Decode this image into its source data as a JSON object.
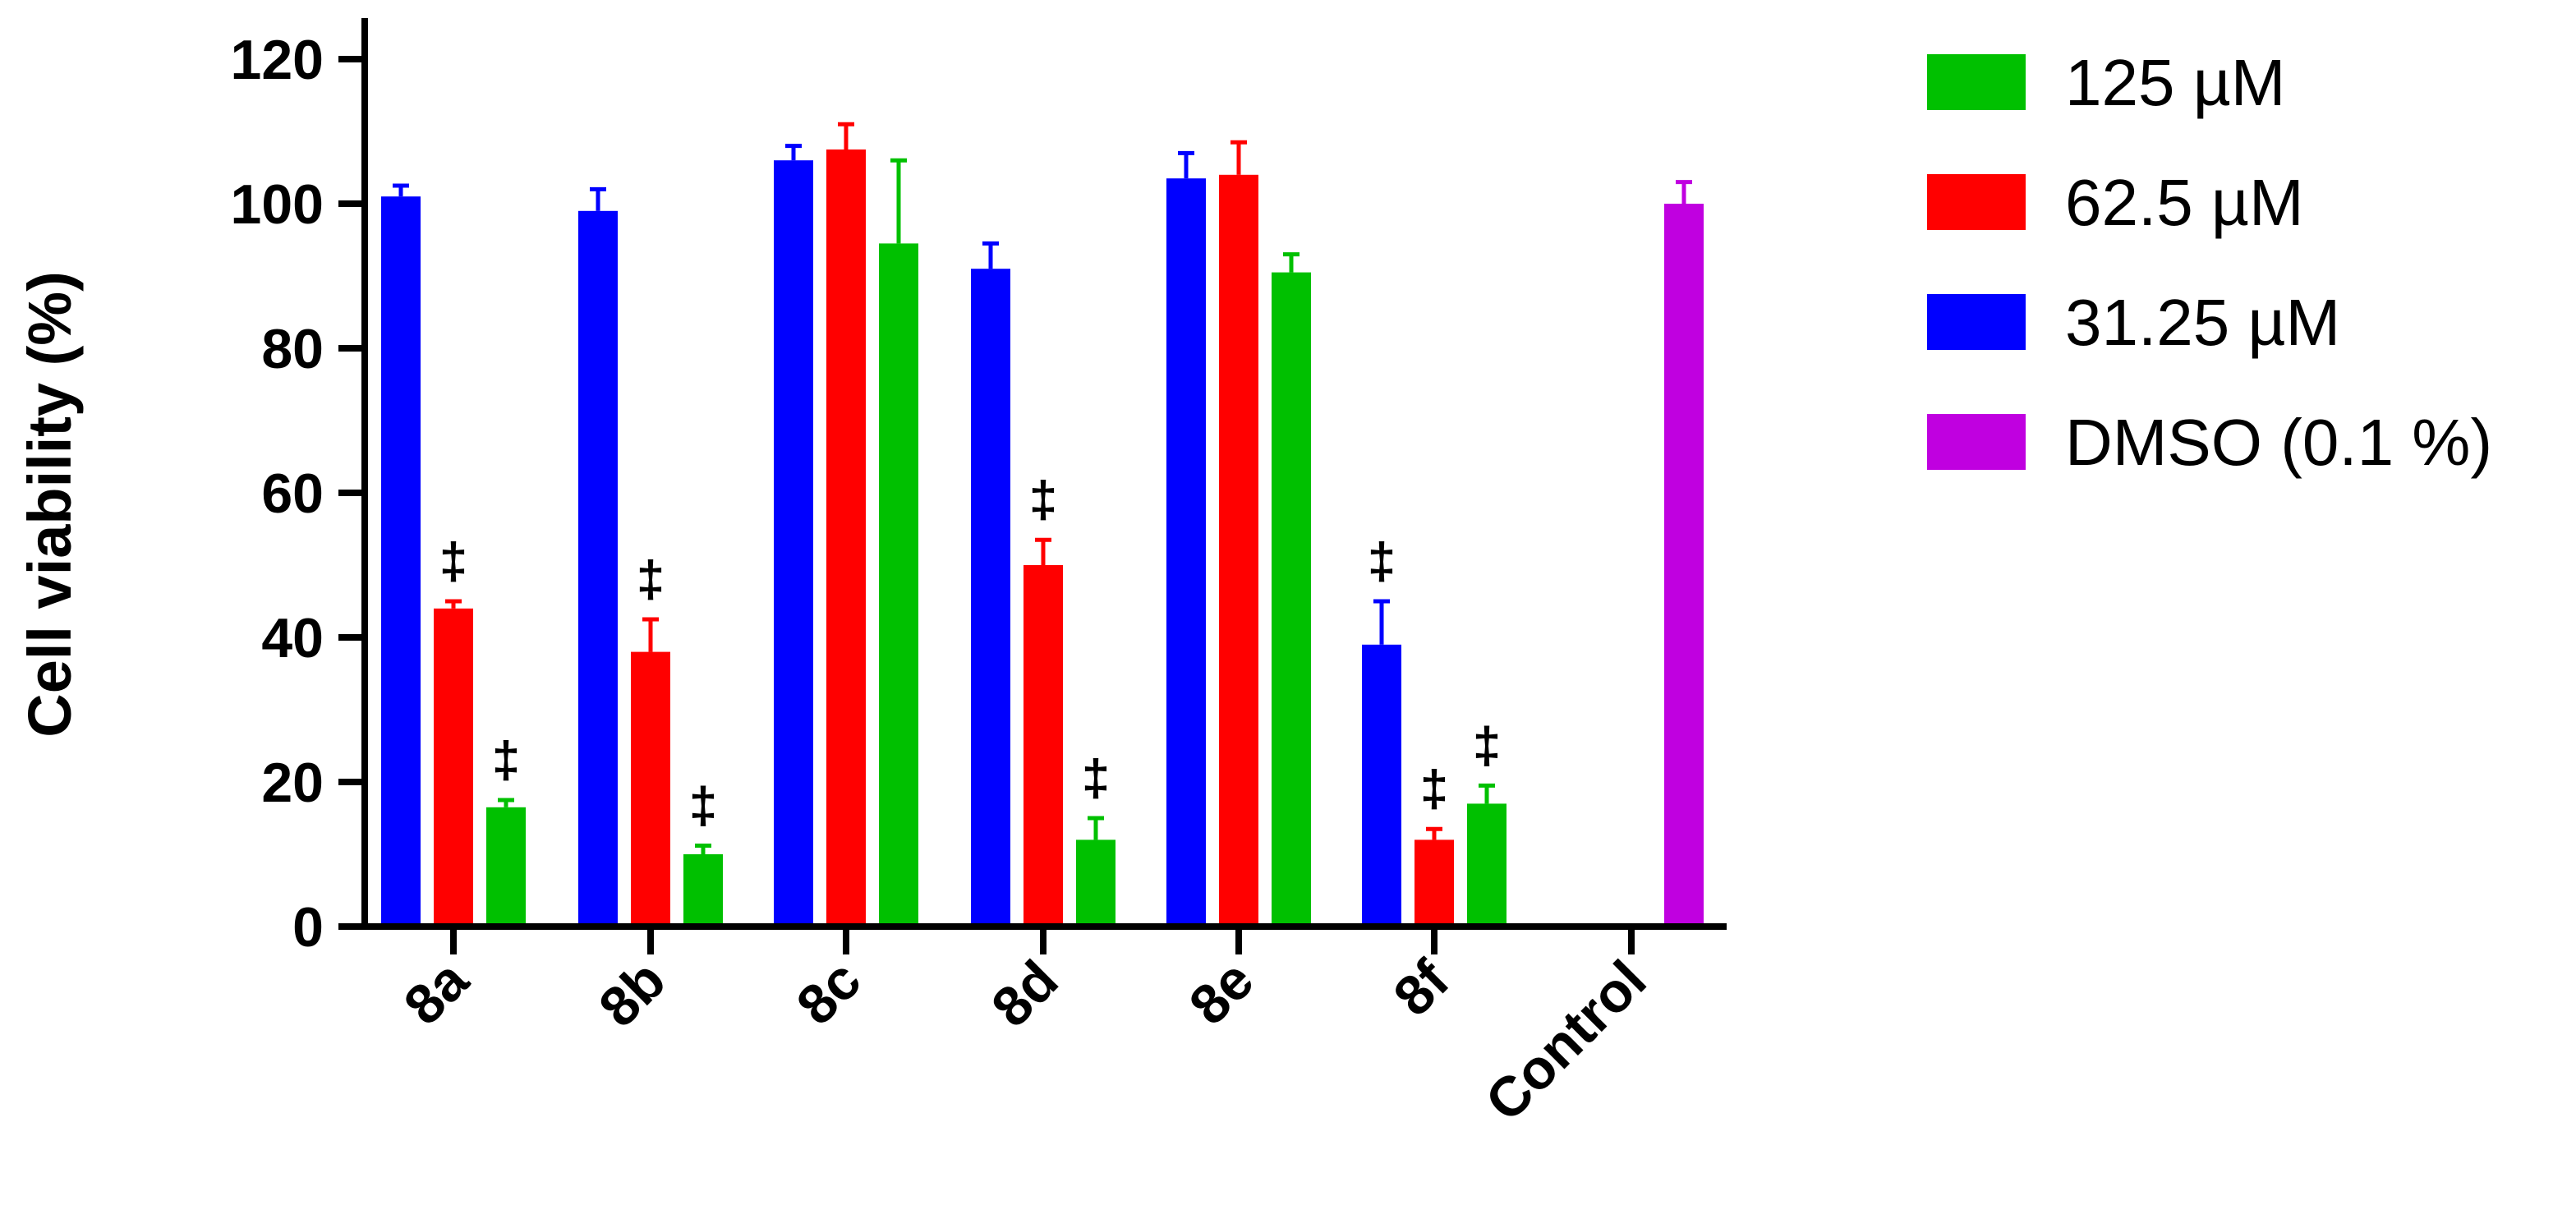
{
  "chart_data": {
    "type": "bar",
    "title": "",
    "xlabel": "",
    "ylabel": "Cell viability (%)",
    "ylim": [
      0,
      120
    ],
    "yticks": [
      0,
      20,
      40,
      60,
      80,
      100,
      120
    ],
    "categories": [
      "8a",
      "8b",
      "8c",
      "8d",
      "8e",
      "8f",
      "Control"
    ],
    "legend_position": "right",
    "significance_marker": "‡",
    "series": [
      {
        "name": "31.25 µM",
        "color": "#0000ff",
        "values": [
          101,
          99,
          106,
          91,
          103.5,
          39,
          null
        ],
        "errors": [
          1.5,
          3,
          2,
          3.5,
          3.5,
          6,
          null
        ],
        "significant": [
          false,
          false,
          false,
          false,
          false,
          true,
          false
        ]
      },
      {
        "name": "62.5 µM",
        "color": "#ff0000",
        "values": [
          44,
          38,
          107.5,
          50,
          104,
          12,
          null
        ],
        "errors": [
          1,
          4.5,
          3.5,
          3.5,
          4.5,
          1.5,
          null
        ],
        "significant": [
          true,
          true,
          false,
          true,
          false,
          true,
          false
        ]
      },
      {
        "name": "125 µM",
        "color": "#00c000",
        "values": [
          16.5,
          10,
          94.5,
          12,
          90.5,
          17,
          null
        ],
        "errors": [
          1,
          1.2,
          11.5,
          3,
          2.5,
          2.5,
          null
        ],
        "significant": [
          true,
          true,
          false,
          true,
          false,
          true,
          false
        ]
      },
      {
        "name": "DMSO (0.1 %)",
        "color": "#c000e0",
        "values": [
          null,
          null,
          null,
          null,
          null,
          null,
          100
        ],
        "errors": [
          null,
          null,
          null,
          null,
          null,
          null,
          3
        ],
        "significant": [
          false,
          false,
          false,
          false,
          false,
          false,
          false
        ]
      }
    ],
    "legend_order": [
      "125 µM",
      "62.5 µM",
      "31.25 µM",
      "DMSO (0.1 %)"
    ]
  }
}
